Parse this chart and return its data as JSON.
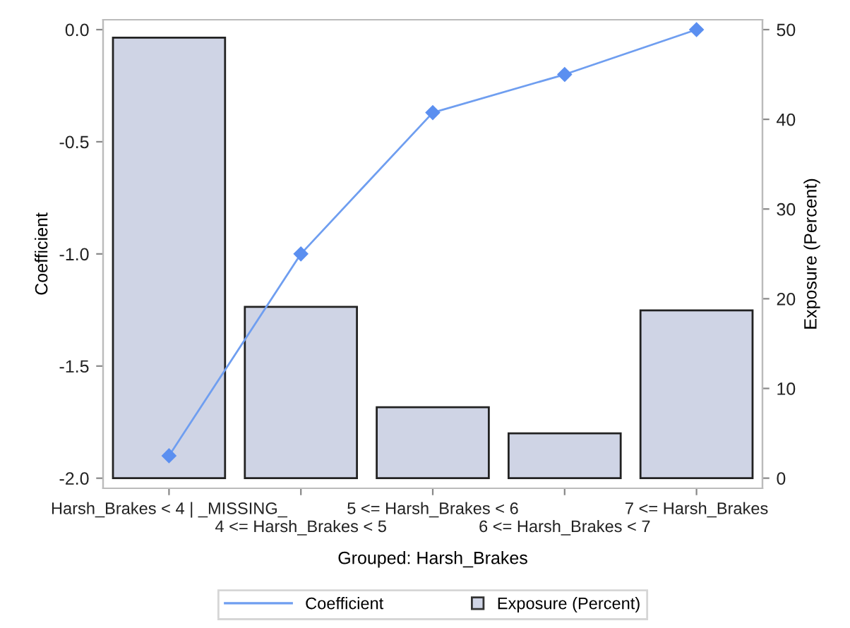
{
  "chart_data": {
    "type": "bar",
    "xlabel": "Grouped: Harsh_Brakes",
    "ylabel": "Coefficient",
    "y2label": "Exposure (Percent)",
    "categories": [
      "Harsh_Brakes < 4 | _MISSING_",
      "4 <= Harsh_Brakes < 5",
      "5 <= Harsh_Brakes < 6",
      "6 <= Harsh_Brakes < 7",
      "7 <= Harsh_Brakes"
    ],
    "series": [
      {
        "name": "Coefficient",
        "type": "line",
        "color": "#6f9ef0",
        "values": [
          -1.9,
          -1.0,
          -0.37,
          -0.2,
          0.0
        ],
        "marker": "diamond"
      },
      {
        "name": "Exposure (Percent)",
        "axis": "y2",
        "color": "#cfd4e5",
        "values": [
          49.1,
          19.1,
          7.9,
          5.0,
          18.7
        ]
      }
    ],
    "ylim": [
      -2.045,
      0.044
    ],
    "yticks": [
      {
        "value": -2,
        "label": "-2.0"
      },
      {
        "value": -1.5,
        "label": "-1.5"
      },
      {
        "value": -1,
        "label": "-1.0"
      },
      {
        "value": -0.5,
        "label": "-0.5"
      },
      {
        "value": 0,
        "label": "0.0"
      }
    ],
    "y2lim": [
      -1.13,
      51.1
    ],
    "y2ticks": [
      0,
      10,
      20,
      30,
      40,
      50
    ],
    "grid": false,
    "legend": "bottom"
  }
}
